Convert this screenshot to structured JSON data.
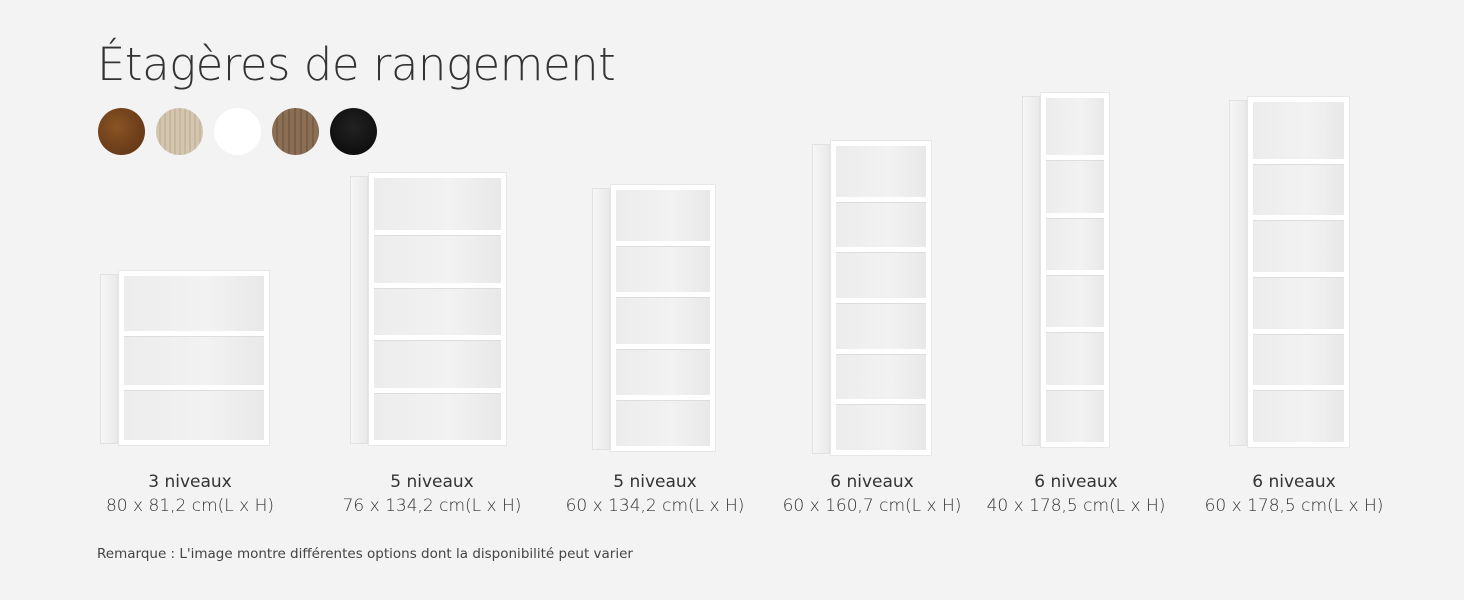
{
  "title": "Étagères de rangement",
  "colors": [
    {
      "name": "rustic-brown",
      "hex": "#6b3d1a"
    },
    {
      "name": "light-oak",
      "hex": "#cdbfa8"
    },
    {
      "name": "white",
      "hex": "#ffffff"
    },
    {
      "name": "walnut",
      "hex": "#85694f"
    },
    {
      "name": "black",
      "hex": "#111111"
    }
  ],
  "products": [
    {
      "tiers_label": "3 niveaux",
      "tiers": 3,
      "dimensions": "80 x 81,2 cm(L x H)"
    },
    {
      "tiers_label": "5 niveaux",
      "tiers": 5,
      "dimensions": "76 x 134,2 cm(L x H)"
    },
    {
      "tiers_label": "5 niveaux",
      "tiers": 5,
      "dimensions": "60 x 134,2 cm(L x H)"
    },
    {
      "tiers_label": "6 niveaux",
      "tiers": 6,
      "dimensions": "60 x 160,7 cm(L x H)"
    },
    {
      "tiers_label": "6 niveaux",
      "tiers": 6,
      "dimensions": "40 x 178,5 cm(L x H)"
    },
    {
      "tiers_label": "6 niveaux",
      "tiers": 6,
      "dimensions": "60 x 178,5 cm(L x H)"
    }
  ],
  "note": "Remarque : L'image montre différentes options dont la disponibilité peut varier"
}
